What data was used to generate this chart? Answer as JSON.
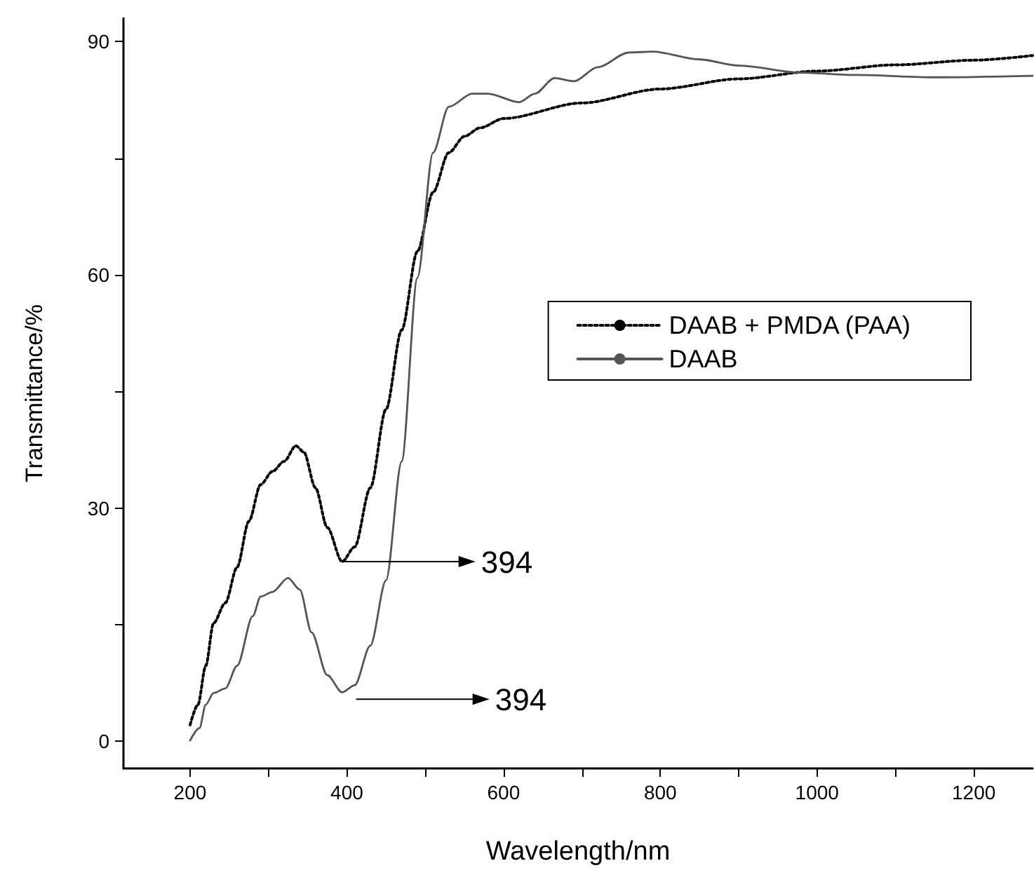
{
  "chart_data": {
    "type": "line",
    "xlabel": "Wavelength/nm",
    "ylabel": "Transmittance/%",
    "xlim": [
      115,
      1275
    ],
    "ylim": [
      -3.5,
      93
    ],
    "xticks": [
      200,
      {
        "value": 300,
        "label": null
      },
      400,
      {
        "value": 500,
        "label": null
      },
      600,
      {
        "value": 700,
        "label": null
      },
      800,
      {
        "value": 900,
        "label": null
      },
      1000,
      {
        "value": 1100,
        "label": null
      },
      1200
    ],
    "yticks": [
      0,
      {
        "value": 15,
        "label": null
      },
      30,
      {
        "value": 45,
        "label": null
      },
      60,
      {
        "value": 75,
        "label": null
      },
      90
    ],
    "grid": false,
    "legend": "right",
    "marker": "none",
    "series": [
      {
        "name": "DAAB + PMDA (PAA)",
        "color": "#000000",
        "line_style": "dotted",
        "x": [
          200,
          210,
          220,
          230,
          245,
          260,
          275,
          290,
          305,
          320,
          335,
          345,
          360,
          375,
          394,
          410,
          430,
          450,
          470,
          490,
          510,
          530,
          550,
          570,
          600,
          700,
          800,
          900,
          1000,
          1100,
          1200,
          1275
        ],
        "values": [
          2.1,
          4.7,
          9.7,
          15.2,
          17.8,
          22.4,
          28.3,
          33,
          34.7,
          36,
          38,
          37.2,
          32.6,
          27.5,
          23.1,
          25,
          32.6,
          42.7,
          52.9,
          63,
          70.6,
          75.7,
          77.8,
          78.9,
          80.1,
          82.1,
          83.9,
          85.2,
          86.2,
          87,
          87.6,
          88.2
        ]
      },
      {
        "name": "DAAB",
        "color": "#555555",
        "line_style": "solid",
        "x": [
          200,
          212,
          220,
          230,
          245,
          260,
          280,
          290,
          305,
          325,
          340,
          355,
          375,
          394,
          410,
          430,
          450,
          470,
          490,
          510,
          530,
          560,
          580,
          620,
          640,
          665,
          690,
          720,
          760,
          790,
          850,
          900,
          980,
          1050,
          1150,
          1275
        ],
        "values": [
          0.1,
          1.7,
          4.7,
          6.2,
          6.8,
          9.7,
          16.1,
          18.6,
          19.2,
          21,
          19.5,
          14,
          8.5,
          6.3,
          7.2,
          12.3,
          20.7,
          36,
          59.6,
          75.7,
          81.6,
          83.3,
          83.3,
          82.2,
          83.3,
          85.3,
          84.9,
          86.7,
          88.6,
          88.7,
          87.7,
          86.9,
          86,
          85.7,
          85.4,
          85.6
        ]
      }
    ],
    "annotations": [
      "394",
      "394"
    ]
  }
}
